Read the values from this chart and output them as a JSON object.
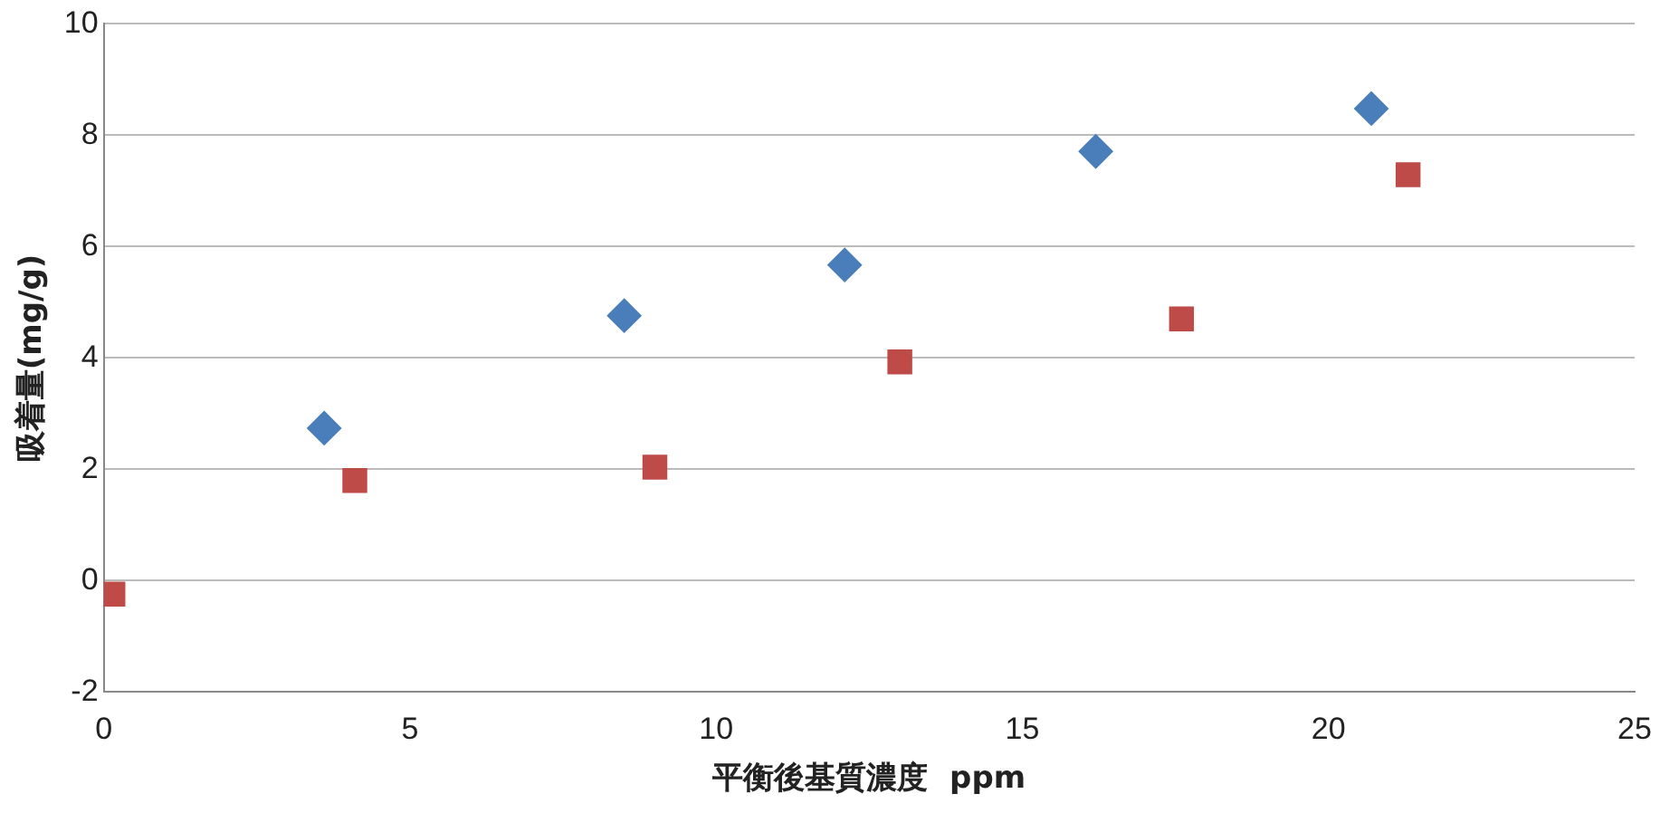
{
  "chart_data": {
    "type": "scatter",
    "xlabel": "平衡後基質濃度  ppm",
    "ylabel": "吸着量(mg/g)",
    "xlim": [
      0,
      25
    ],
    "xticks": [
      0,
      5,
      10,
      15,
      20,
      25
    ],
    "ylim": [
      -2,
      10
    ],
    "yticks": [
      -2,
      0,
      2,
      4,
      6,
      8,
      10
    ],
    "grid": "y",
    "legend": false,
    "series": [
      {
        "color": "#4a7ebb",
        "marker": "diamond",
        "x": [
          3.6,
          8.5,
          12.1,
          16.2,
          20.7
        ],
        "values": [
          2.74,
          4.76,
          5.67,
          7.71,
          8.48
        ]
      },
      {
        "color": "#be4b48",
        "marker": "square",
        "x": [
          0.15,
          4.1,
          9.0,
          13.0,
          17.6,
          21.3
        ],
        "values": [
          -0.24,
          1.8,
          2.04,
          3.93,
          4.7,
          7.29
        ]
      }
    ]
  }
}
